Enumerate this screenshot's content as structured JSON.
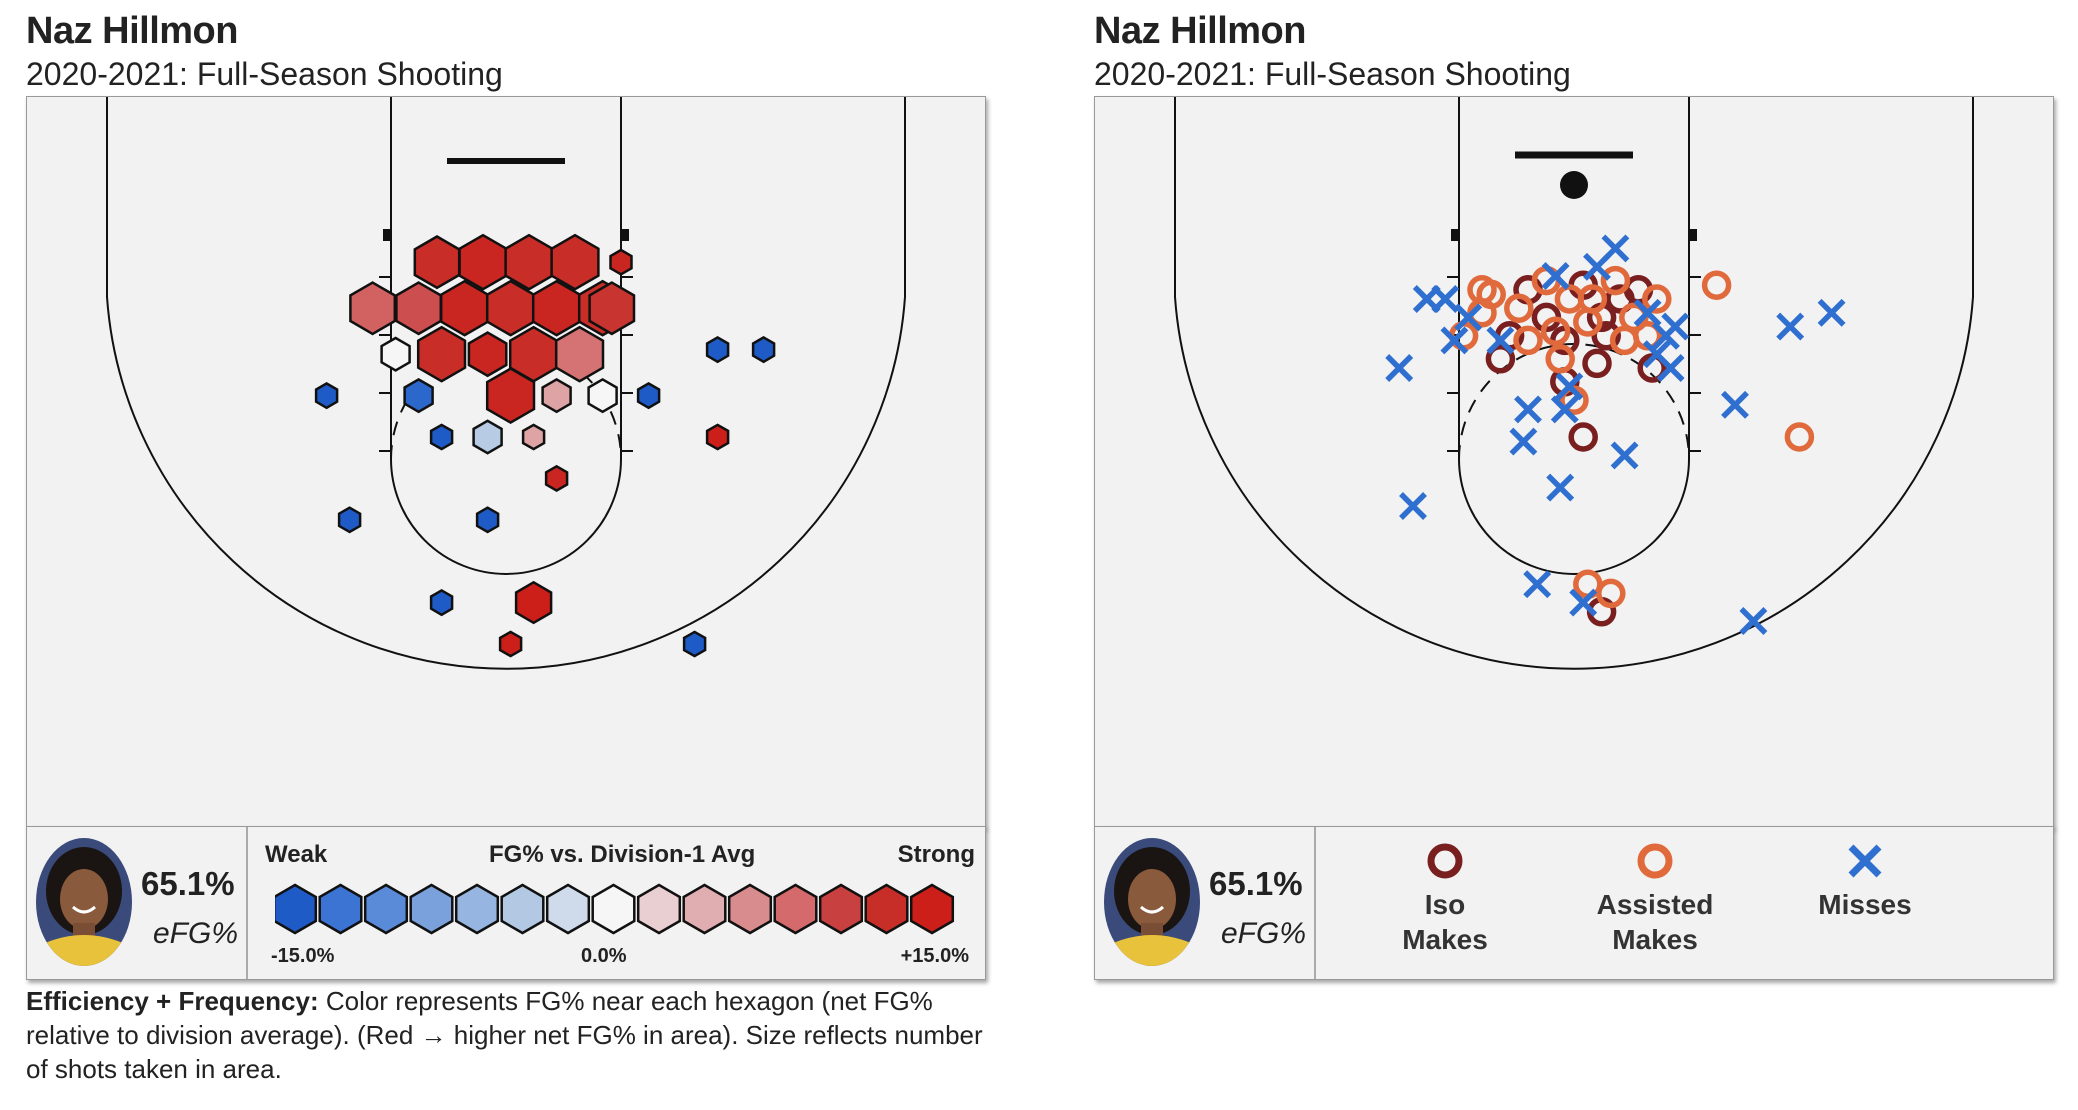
{
  "colors": {
    "court_bg": "#f2f2f2",
    "line": "#111111",
    "iso_make": "#7a1f1f",
    "assisted_make": "#e06a3c",
    "miss": "#2f6fd0",
    "scale": [
      "#1f5bc7",
      "#3b74d2",
      "#5a8bd8",
      "#7aa1dc",
      "#96b5e0",
      "#b3c8e3",
      "#cfdbea",
      "#f6f6f6",
      "#eacfd2",
      "#e0aeb1",
      "#d88c8e",
      "#d46a6b",
      "#c8403f",
      "#c82e28",
      "#cc1f1a"
    ]
  },
  "left_panel": {
    "player_name": "Naz Hillmon",
    "subtitle": "2020-2021: Full-Season Shooting",
    "efg_value": "65.1%",
    "efg_label": "eFG%",
    "legend": {
      "weak": "Weak",
      "title": "FG% vs. Division-1 Avg",
      "strong": "Strong",
      "min": "-15.0%",
      "mid": "0.0%",
      "max": "+15.0%"
    },
    "caption_bold": "Efficiency + Frequency:",
    "caption_text": " Color represents FG% near each hexagon (net FG% relative to division average). (Red → higher net FG% in area). Size reflects number of shots taken in area."
  },
  "right_panel": {
    "player_name": "Naz Hillmon",
    "subtitle": "2020-2021: Full-Season Shooting",
    "efg_value": "65.1%",
    "efg_label": "eFG%",
    "legend": {
      "iso_line1": "Iso",
      "iso_line2": "Makes",
      "assisted_line1": "Assisted",
      "assisted_line2": "Makes",
      "miss_label": "Misses"
    }
  },
  "chart_data": [
    {
      "type": "scatter",
      "subtype": "hexbin",
      "title": "Naz Hillmon",
      "subtitle": "2020-2021: Full-Season Shooting",
      "color_scale": {
        "min": -15.0,
        "mid": 0.0,
        "max": 15.0
      },
      "points": [
        {
          "x": -1.5,
          "y": 2.2,
          "net": 13,
          "size": 0.95
        },
        {
          "x": -0.5,
          "y": 2.2,
          "net": 14,
          "size": 1.0
        },
        {
          "x": 0.5,
          "y": 2.2,
          "net": 13,
          "size": 1.0
        },
        {
          "x": 1.5,
          "y": 2.2,
          "net": 13,
          "size": 1.0
        },
        {
          "x": 2.5,
          "y": 2.2,
          "net": 14,
          "size": 0.45
        },
        {
          "x": -2.9,
          "y": 3.2,
          "net": 9,
          "size": 0.95
        },
        {
          "x": -1.9,
          "y": 3.2,
          "net": 10,
          "size": 0.95
        },
        {
          "x": -0.9,
          "y": 3.2,
          "net": 14,
          "size": 1.0
        },
        {
          "x": 0.1,
          "y": 3.2,
          "net": 13,
          "size": 1.0
        },
        {
          "x": 1.1,
          "y": 3.2,
          "net": 14,
          "size": 1.0
        },
        {
          "x": 2.1,
          "y": 3.2,
          "net": 13,
          "size": 1.0
        },
        {
          "x": 2.3,
          "y": 3.2,
          "net": 12,
          "size": 0.95
        },
        {
          "x": -2.4,
          "y": 4.2,
          "net": 0,
          "size": 0.6
        },
        {
          "x": -1.4,
          "y": 4.2,
          "net": 13,
          "size": 1.0
        },
        {
          "x": -0.4,
          "y": 4.2,
          "net": 14,
          "size": 0.8
        },
        {
          "x": 0.6,
          "y": 4.2,
          "net": 13,
          "size": 1.0
        },
        {
          "x": 1.6,
          "y": 4.2,
          "net": 8,
          "size": 1.0
        },
        {
          "x": 0.1,
          "y": 5.1,
          "net": 14,
          "size": 1.0
        },
        {
          "x": 1.1,
          "y": 5.1,
          "net": 5,
          "size": 0.6
        },
        {
          "x": 2.1,
          "y": 5.1,
          "net": 0,
          "size": 0.6
        },
        {
          "x": -1.9,
          "y": 5.1,
          "net": -14,
          "size": 0.6
        },
        {
          "x": -3.9,
          "y": 5.1,
          "net": -15,
          "size": 0.45
        },
        {
          "x": 3.1,
          "y": 5.1,
          "net": -15,
          "size": 0.45
        },
        {
          "x": 4.6,
          "y": 4.1,
          "net": -15,
          "size": 0.45
        },
        {
          "x": 5.6,
          "y": 4.1,
          "net": -15,
          "size": 0.45
        },
        {
          "x": -1.4,
          "y": 6.0,
          "net": -15,
          "size": 0.45
        },
        {
          "x": -0.4,
          "y": 6.0,
          "net": -4,
          "size": 0.6
        },
        {
          "x": 0.6,
          "y": 6.0,
          "net": 5,
          "size": 0.45
        },
        {
          "x": 4.6,
          "y": 6.0,
          "net": 15,
          "size": 0.45
        },
        {
          "x": 1.1,
          "y": 6.9,
          "net": 14,
          "size": 0.45
        },
        {
          "x": -3.4,
          "y": 7.8,
          "net": -15,
          "size": 0.45
        },
        {
          "x": -0.4,
          "y": 7.8,
          "net": -15,
          "size": 0.45
        },
        {
          "x": -1.4,
          "y": 9.6,
          "net": -15,
          "size": 0.45
        },
        {
          "x": 0.6,
          "y": 9.6,
          "net": 15,
          "size": 0.75
        },
        {
          "x": 0.1,
          "y": 10.5,
          "net": 15,
          "size": 0.45
        },
        {
          "x": 4.1,
          "y": 10.5,
          "net": -15,
          "size": 0.45
        }
      ]
    },
    {
      "type": "scatter",
      "title": "Naz Hillmon",
      "subtitle": "2020-2021: Full-Season Shooting",
      "series": [
        {
          "name": "Iso Makes",
          "points": [
            {
              "x": -1.0,
              "y": 2.8
            },
            {
              "x": 0.2,
              "y": 2.7
            },
            {
              "x": 1.4,
              "y": 2.8
            },
            {
              "x": -0.6,
              "y": 3.4
            },
            {
              "x": 0.6,
              "y": 3.4
            },
            {
              "x": 1.0,
              "y": 3.0
            },
            {
              "x": -1.4,
              "y": 3.8
            },
            {
              "x": -0.2,
              "y": 3.9
            },
            {
              "x": 0.7,
              "y": 3.8
            },
            {
              "x": -1.6,
              "y": 4.3
            },
            {
              "x": 0.5,
              "y": 4.4
            },
            {
              "x": 1.7,
              "y": 4.5
            },
            {
              "x": -0.2,
              "y": 4.8
            },
            {
              "x": 0.2,
              "y": 6.0
            },
            {
              "x": 0.6,
              "y": 9.8
            }
          ]
        },
        {
          "name": "Assisted Makes",
          "points": [
            {
              "x": -2.0,
              "y": 3.3
            },
            {
              "x": -2.4,
              "y": 3.8
            },
            {
              "x": -1.8,
              "y": 2.9
            },
            {
              "x": -1.2,
              "y": 3.2
            },
            {
              "x": -0.6,
              "y": 2.6
            },
            {
              "x": -0.1,
              "y": 3.0
            },
            {
              "x": 0.4,
              "y": 3.0
            },
            {
              "x": 0.9,
              "y": 2.6
            },
            {
              "x": 1.3,
              "y": 3.4
            },
            {
              "x": 1.8,
              "y": 3.0
            },
            {
              "x": -0.4,
              "y": 3.7
            },
            {
              "x": 0.3,
              "y": 3.5
            },
            {
              "x": 1.1,
              "y": 3.9
            },
            {
              "x": -1.0,
              "y": 3.9
            },
            {
              "x": -0.3,
              "y": 4.3
            },
            {
              "x": 0.0,
              "y": 5.2
            },
            {
              "x": 3.1,
              "y": 2.7
            },
            {
              "x": 4.9,
              "y": 6.0
            },
            {
              "x": 0.3,
              "y": 9.2
            },
            {
              "x": 0.8,
              "y": 9.4
            },
            {
              "x": -2.0,
              "y": 2.8
            },
            {
              "x": 1.6,
              "y": 3.8
            }
          ]
        },
        {
          "name": "Misses",
          "points": [
            {
              "x": -3.2,
              "y": 3.0
            },
            {
              "x": -2.8,
              "y": 3.0
            },
            {
              "x": -2.6,
              "y": 3.9
            },
            {
              "x": -2.3,
              "y": 3.4
            },
            {
              "x": -1.6,
              "y": 3.9
            },
            {
              "x": -0.4,
              "y": 2.5
            },
            {
              "x": 0.9,
              "y": 1.9
            },
            {
              "x": 0.5,
              "y": 2.3
            },
            {
              "x": 1.6,
              "y": 3.3
            },
            {
              "x": 2.0,
              "y": 3.8
            },
            {
              "x": 2.1,
              "y": 4.5
            },
            {
              "x": 1.8,
              "y": 4.2
            },
            {
              "x": 2.2,
              "y": 3.6
            },
            {
              "x": -0.1,
              "y": 4.9
            },
            {
              "x": -0.2,
              "y": 5.4
            },
            {
              "x": -1.0,
              "y": 5.4
            },
            {
              "x": -3.8,
              "y": 4.5
            },
            {
              "x": 3.5,
              "y": 5.3
            },
            {
              "x": 4.7,
              "y": 3.6
            },
            {
              "x": 5.6,
              "y": 3.3
            },
            {
              "x": -1.1,
              "y": 6.1
            },
            {
              "x": 1.1,
              "y": 6.4
            },
            {
              "x": -0.3,
              "y": 7.1
            },
            {
              "x": -3.5,
              "y": 7.5
            },
            {
              "x": -0.8,
              "y": 9.2
            },
            {
              "x": 0.2,
              "y": 9.6
            },
            {
              "x": 3.9,
              "y": 10.0
            }
          ]
        }
      ]
    }
  ]
}
